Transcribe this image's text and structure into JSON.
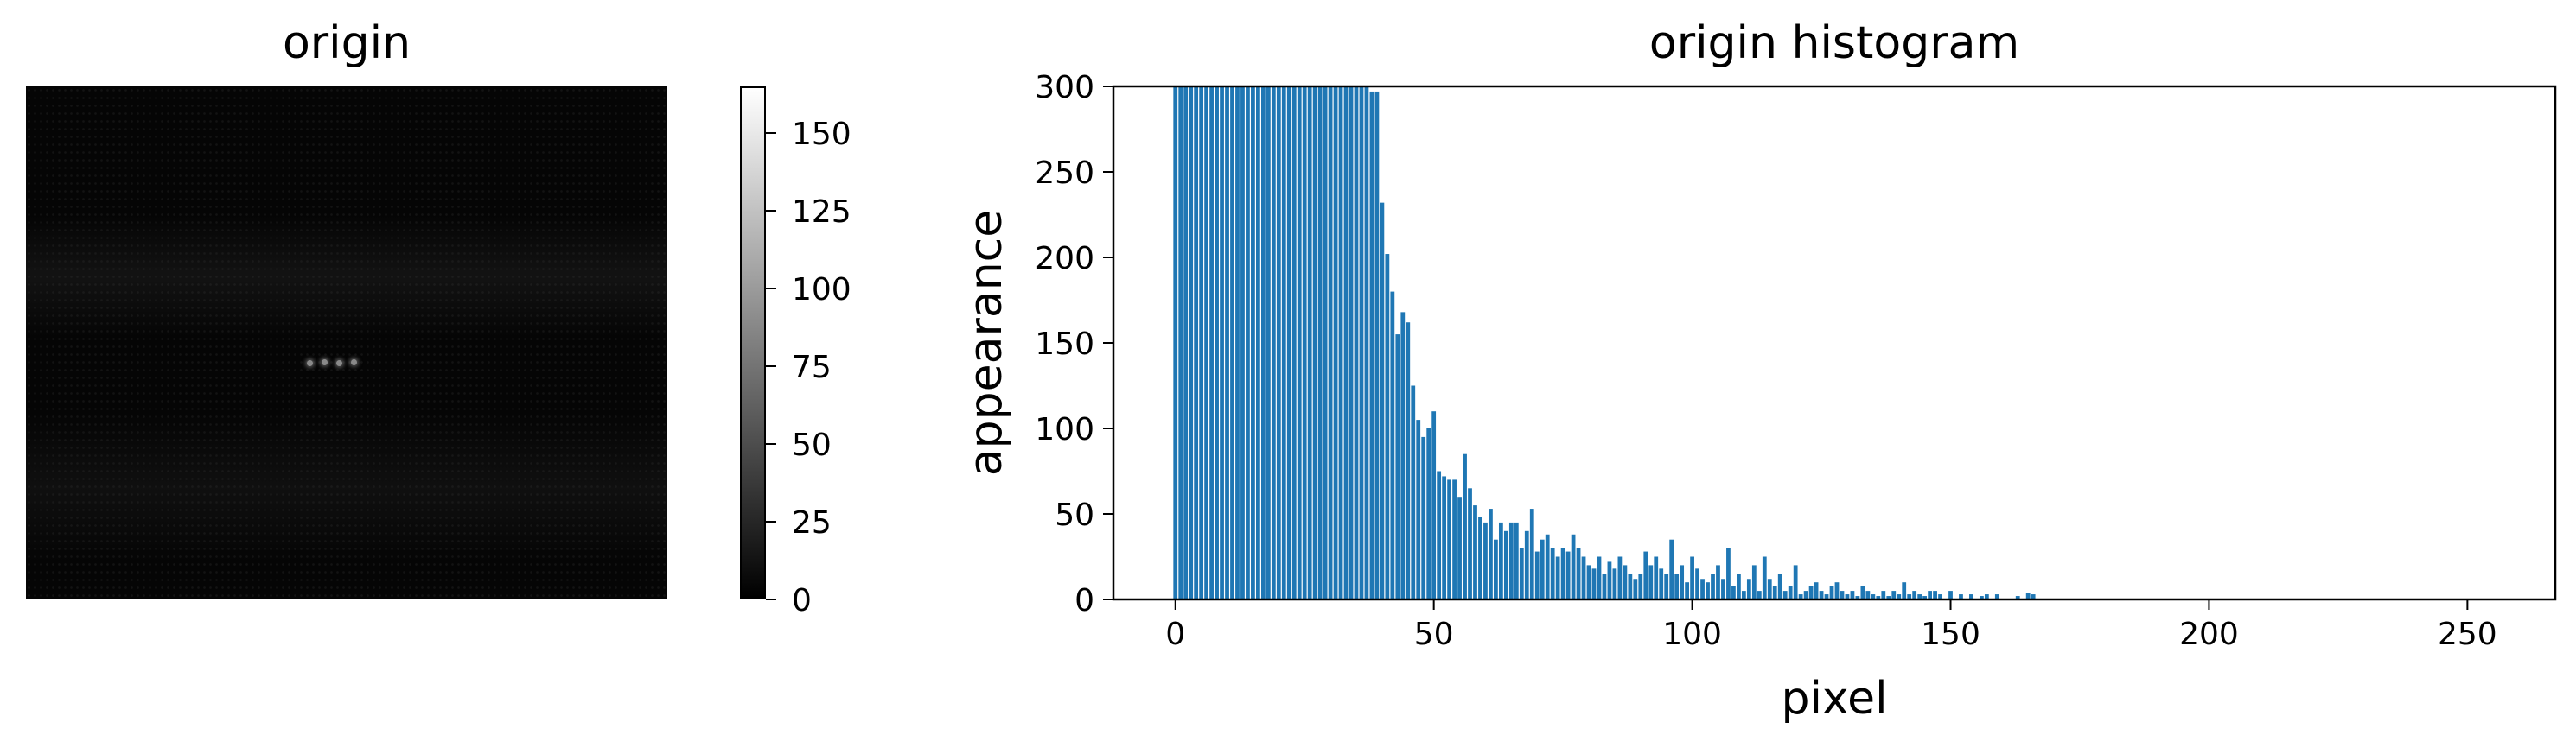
{
  "image_panel": {
    "title": "origin",
    "colorbar_ticks": [
      0,
      25,
      50,
      75,
      100,
      125,
      150
    ],
    "colorbar_range": [
      0,
      165
    ],
    "colormap": "gray"
  },
  "chart_data": {
    "type": "bar",
    "title": "origin histogram",
    "xlabel": "pixel",
    "ylabel": "appearance",
    "xlim": [
      -12,
      267
    ],
    "ylim": [
      0,
      300
    ],
    "xticks": [
      0,
      50,
      100,
      150,
      200,
      250
    ],
    "yticks": [
      0,
      50,
      100,
      150,
      200,
      250,
      300
    ],
    "bar_color": "#1f77b4",
    "x": [
      0,
      1,
      2,
      3,
      4,
      5,
      6,
      7,
      8,
      9,
      10,
      11,
      12,
      13,
      14,
      15,
      16,
      17,
      18,
      19,
      20,
      21,
      22,
      23,
      24,
      25,
      26,
      27,
      28,
      29,
      30,
      31,
      32,
      33,
      34,
      35,
      36,
      37,
      38,
      39,
      40,
      41,
      42,
      43,
      44,
      45,
      46,
      47,
      48,
      49,
      50,
      51,
      52,
      53,
      54,
      55,
      56,
      57,
      58,
      59,
      60,
      61,
      62,
      63,
      64,
      65,
      66,
      67,
      68,
      69,
      70,
      71,
      72,
      73,
      74,
      75,
      76,
      77,
      78,
      79,
      80,
      81,
      82,
      83,
      84,
      85,
      86,
      87,
      88,
      89,
      90,
      91,
      92,
      93,
      94,
      95,
      96,
      97,
      98,
      99,
      100,
      101,
      102,
      103,
      104,
      105,
      106,
      107,
      108,
      109,
      110,
      111,
      112,
      113,
      114,
      115,
      116,
      117,
      118,
      119,
      120,
      121,
      122,
      123,
      124,
      125,
      126,
      127,
      128,
      129,
      130,
      131,
      132,
      133,
      134,
      135,
      136,
      137,
      138,
      139,
      140,
      141,
      142,
      143,
      144,
      145,
      146,
      147,
      148,
      149,
      150,
      151,
      152,
      153,
      154,
      155,
      156,
      157,
      158,
      159,
      160,
      161,
      162,
      163,
      164,
      165,
      166
    ],
    "values": [
      300,
      300,
      300,
      300,
      300,
      300,
      300,
      300,
      300,
      300,
      300,
      300,
      300,
      300,
      300,
      300,
      300,
      300,
      300,
      300,
      300,
      300,
      300,
      300,
      300,
      300,
      300,
      300,
      300,
      300,
      300,
      300,
      300,
      300,
      300,
      300,
      300,
      300,
      297,
      297,
      232,
      202,
      180,
      155,
      168,
      162,
      125,
      105,
      95,
      100,
      110,
      75,
      72,
      70,
      70,
      60,
      85,
      65,
      55,
      48,
      45,
      53,
      35,
      45,
      40,
      45,
      45,
      30,
      40,
      53,
      28,
      35,
      38,
      30,
      25,
      30,
      28,
      38,
      30,
      25,
      20,
      18,
      25,
      15,
      22,
      18,
      25,
      20,
      15,
      12,
      15,
      28,
      20,
      25,
      18,
      15,
      35,
      15,
      20,
      10,
      25,
      18,
      12,
      10,
      15,
      20,
      12,
      30,
      8,
      15,
      5,
      12,
      20,
      5,
      25,
      12,
      8,
      15,
      5,
      8,
      20,
      3,
      5,
      8,
      10,
      5,
      3,
      8,
      10,
      5,
      3,
      5,
      2,
      8,
      5,
      3,
      2,
      5,
      2,
      5,
      3,
      10,
      3,
      5,
      3,
      2,
      5,
      5,
      3,
      0,
      5,
      0,
      3,
      0,
      3,
      0,
      2,
      3,
      0,
      3,
      0,
      0,
      0,
      2,
      0,
      4,
      3
    ]
  }
}
